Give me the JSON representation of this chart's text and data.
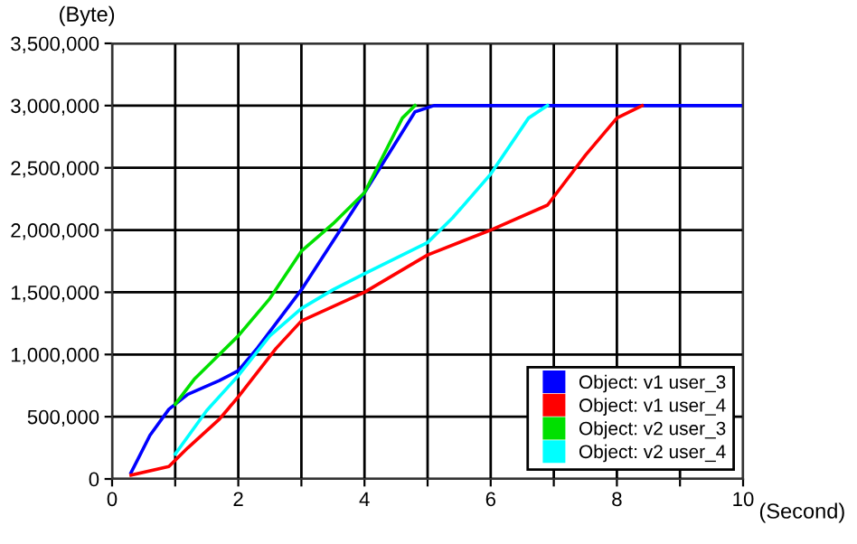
{
  "chart_data": {
    "type": "line",
    "xlabel": "(Second)",
    "ylabel": "(Byte)",
    "xlim": [
      0,
      10
    ],
    "ylim": [
      0,
      3500000
    ],
    "xticks": [
      0,
      {
        "value": 1,
        "label": null
      },
      2,
      {
        "value": 3,
        "label": null
      },
      4,
      {
        "value": 5,
        "label": null
      },
      6,
      {
        "value": 7,
        "label": null
      },
      8,
      {
        "value": 9,
        "label": null
      },
      10
    ],
    "yticks": [
      {
        "value": 0,
        "label": "0"
      },
      {
        "value": 500000,
        "label": "500,000"
      },
      {
        "value": 1000000,
        "label": "1,000,000"
      },
      {
        "value": 1500000,
        "label": "1,500,000"
      },
      {
        "value": 2000000,
        "label": "2,000,000"
      },
      {
        "value": 2500000,
        "label": "2,500,000"
      },
      {
        "value": 3000000,
        "label": "3,000,000"
      },
      {
        "value": 3500000,
        "label": "3,500,000"
      }
    ],
    "grid": true,
    "legend": "bottom right",
    "marker": "none",
    "line_style": "solid",
    "series": [
      {
        "name": "Object: v1 user_3",
        "color": "#0000ff",
        "x": [
          0.3,
          0.6,
          0.9,
          1.2,
          1.7,
          2.0,
          2.3,
          3.0,
          4.0,
          4.8,
          5.1,
          10
        ],
        "values": [
          50000,
          350000,
          560000,
          680000,
          790000,
          870000,
          1050000,
          1520000,
          2300000,
          2950000,
          3000000,
          3000000
        ]
      },
      {
        "name": "Object: v1 user_4",
        "color": "#ff0000",
        "x": [
          0.3,
          0.9,
          1.2,
          1.7,
          2.0,
          2.6,
          3.0,
          4.0,
          5.0,
          6.0,
          6.9,
          7.5,
          8.0,
          8.4
        ],
        "values": [
          30000,
          100000,
          250000,
          480000,
          660000,
          1050000,
          1270000,
          1500000,
          1800000,
          2000000,
          2200000,
          2600000,
          2900000,
          3000000
        ]
      },
      {
        "name": "Object: v2 user_3",
        "color": "#00e000",
        "x": [
          1.0,
          1.3,
          1.7,
          2.0,
          2.5,
          3.0,
          3.5,
          4.0,
          4.6,
          4.8
        ],
        "values": [
          600000,
          800000,
          1000000,
          1150000,
          1450000,
          1830000,
          2050000,
          2300000,
          2900000,
          3000000
        ]
      },
      {
        "name": "Object: v2 user_4",
        "color": "#00ffff",
        "x": [
          1.0,
          1.5,
          2.0,
          2.5,
          3.0,
          3.5,
          4.0,
          5.0,
          5.4,
          6.0,
          6.6,
          6.9
        ],
        "values": [
          200000,
          550000,
          830000,
          1150000,
          1370000,
          1520000,
          1650000,
          1900000,
          2100000,
          2450000,
          2900000,
          3000000
        ]
      }
    ]
  }
}
